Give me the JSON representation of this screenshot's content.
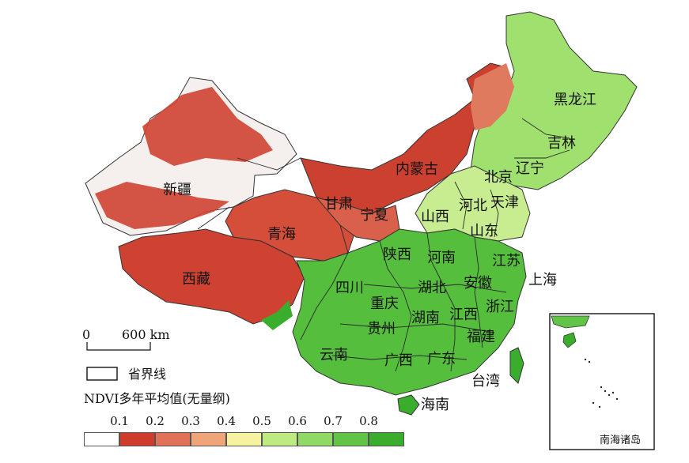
{
  "map": {
    "provinces": [
      {
        "name": "新疆"
      },
      {
        "name": "西藏"
      },
      {
        "name": "青海"
      },
      {
        "name": "甘肃"
      },
      {
        "name": "宁夏"
      },
      {
        "name": "内蒙古"
      },
      {
        "name": "黑龙江"
      },
      {
        "name": "吉林"
      },
      {
        "name": "辽宁"
      },
      {
        "name": "北京"
      },
      {
        "name": "天津"
      },
      {
        "name": "河北"
      },
      {
        "name": "山西"
      },
      {
        "name": "山东"
      },
      {
        "name": "陕西"
      },
      {
        "name": "河南"
      },
      {
        "name": "江苏"
      },
      {
        "name": "安徽"
      },
      {
        "name": "上海"
      },
      {
        "name": "四川"
      },
      {
        "name": "重庆"
      },
      {
        "name": "湖北"
      },
      {
        "name": "贵州"
      },
      {
        "name": "湖南"
      },
      {
        "name": "江西"
      },
      {
        "name": "浙江"
      },
      {
        "name": "福建"
      },
      {
        "name": "云南"
      },
      {
        "name": "广西"
      },
      {
        "name": "广东"
      },
      {
        "name": "台湾"
      },
      {
        "name": "海南"
      }
    ],
    "inset_label": "南海诸岛"
  },
  "scale_bar": {
    "zero": "0",
    "distance": "600 km"
  },
  "boundary_legend": {
    "label": "省界线"
  },
  "ndvi_legend": {
    "title": "NDVI多年平均值(无量纲)",
    "ticks": [
      "0.1",
      "0.2",
      "0.3",
      "0.4",
      "0.5",
      "0.6",
      "0.7",
      "0.8"
    ],
    "colors": [
      "#ffffff",
      "#d03c2c",
      "#e2715a",
      "#f0a47a",
      "#f7f2a0",
      "#bdeb82",
      "#8fd964",
      "#62c447",
      "#3aad2c"
    ]
  }
}
